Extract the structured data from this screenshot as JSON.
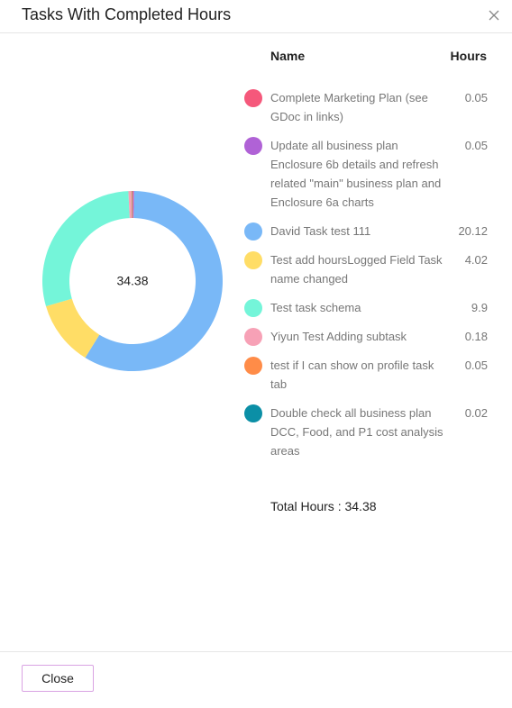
{
  "dialog": {
    "title": "Tasks With Completed Hours",
    "close_button": "Close"
  },
  "table": {
    "columns": [
      "Name",
      "Hours"
    ],
    "total_text": "Total Hours : 34.38"
  },
  "chart_data": {
    "type": "donut",
    "center_label": "34.38",
    "categories": [
      "Complete Marketing Plan (see GDoc in links)",
      "Update all business plan Enclosure 6b details and refresh related \"main\" business plan and Enclosure 6a charts",
      "David Task test 111",
      "Test add hoursLogged Field Task name changed",
      "Test task schema",
      "Yiyun Test Adding subtask",
      "test if I can show on profile task tab",
      "Double check all business plan DCC, Food, and P1 cost analysis areas"
    ],
    "values": [
      0.05,
      0.05,
      20.12,
      4.02,
      9.9,
      0.18,
      0.05,
      0.02
    ],
    "colors": [
      "#f5587b",
      "#b062d6",
      "#79b8f7",
      "#ffdd66",
      "#74f5d9",
      "#f7a1b6",
      "#ff8c48",
      "#0b8fa6"
    ]
  }
}
